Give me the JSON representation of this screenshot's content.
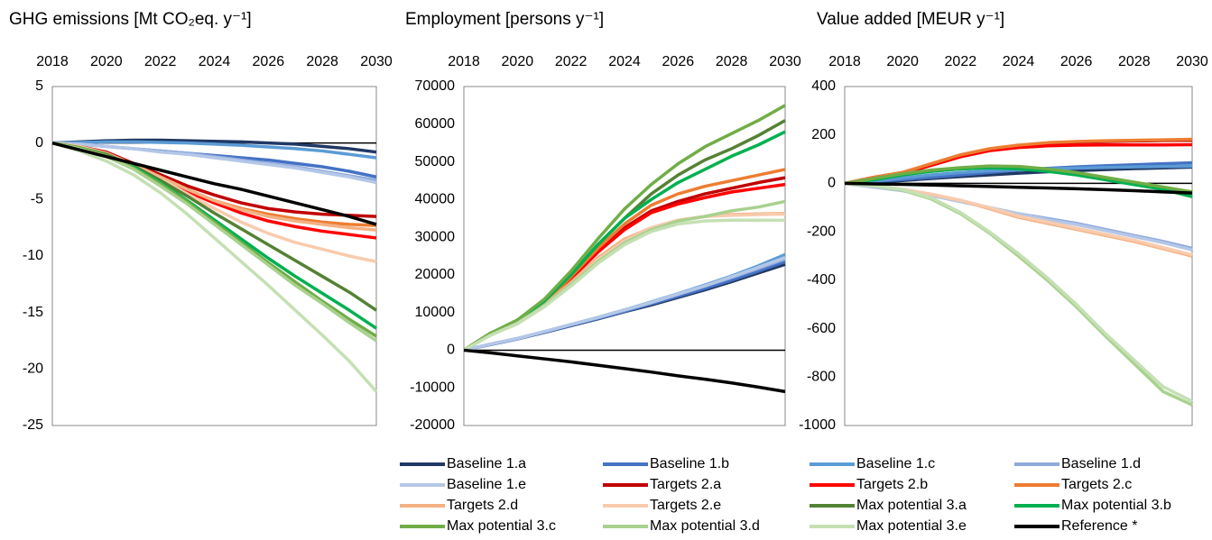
{
  "chart_data": [
    {
      "type": "line",
      "title": "GHG emissions [Mt CO₂eq. y⁻¹]",
      "x": [
        2018,
        2019,
        2020,
        2021,
        2022,
        2023,
        2024,
        2025,
        2026,
        2027,
        2028,
        2029,
        2030
      ],
      "xlim": [
        2018,
        2030
      ],
      "xticks": [
        2018,
        2020,
        2022,
        2024,
        2026,
        2028,
        2030
      ],
      "ylim": [
        -25,
        5
      ],
      "yticks": [
        -25,
        -20,
        -15,
        -10,
        -5,
        0,
        5
      ],
      "series": [
        {
          "values": [
            0,
            0.1,
            0.2,
            0.25,
            0.25,
            0.2,
            0.15,
            0.1,
            0,
            -0.1,
            -0.3,
            -0.5,
            -0.8
          ]
        },
        {
          "values": [
            0,
            -0.1,
            -0.3,
            -0.5,
            -0.7,
            -0.9,
            -1.1,
            -1.3,
            -1.5,
            -1.8,
            -2.1,
            -2.5,
            -3.0
          ]
        },
        {
          "values": [
            0,
            0.05,
            0.1,
            0.1,
            0.05,
            0,
            -0.1,
            -0.2,
            -0.35,
            -0.5,
            -0.7,
            -1.0,
            -1.3
          ]
        },
        {
          "values": [
            0,
            -0.1,
            -0.3,
            -0.5,
            -0.7,
            -0.9,
            -1.2,
            -1.5,
            -1.8,
            -2.1,
            -2.5,
            -2.9,
            -3.3
          ]
        },
        {
          "values": [
            0,
            -0.1,
            -0.3,
            -0.5,
            -0.8,
            -1.0,
            -1.3,
            -1.6,
            -1.9,
            -2.2,
            -2.6,
            -3.0,
            -3.5
          ]
        },
        {
          "values": [
            0,
            -0.3,
            -0.8,
            -1.8,
            -2.8,
            -3.8,
            -4.6,
            -5.3,
            -5.8,
            -6.1,
            -6.3,
            -6.4,
            -6.5
          ]
        },
        {
          "values": [
            0,
            -0.4,
            -1.0,
            -2.0,
            -3.2,
            -4.3,
            -5.3,
            -6.2,
            -6.9,
            -7.4,
            -7.8,
            -8.1,
            -8.4
          ]
        },
        {
          "values": [
            0,
            -0.3,
            -0.9,
            -1.9,
            -3.0,
            -4.1,
            -5.1,
            -5.8,
            -6.3,
            -6.7,
            -7.0,
            -7.2,
            -7.3
          ]
        },
        {
          "values": [
            0,
            -0.3,
            -0.9,
            -1.9,
            -3.0,
            -4.1,
            -5.1,
            -5.9,
            -6.5,
            -6.9,
            -7.2,
            -7.5,
            -7.7
          ]
        },
        {
          "values": [
            0,
            -0.3,
            -1.0,
            -2.0,
            -3.2,
            -4.5,
            -5.8,
            -7.0,
            -8.0,
            -8.8,
            -9.4,
            -10.0,
            -10.5
          ]
        },
        {
          "values": [
            0,
            -0.4,
            -1.0,
            -2.0,
            -3.3,
            -4.7,
            -6.2,
            -7.6,
            -9.0,
            -10.4,
            -11.8,
            -13.2,
            -14.8
          ]
        },
        {
          "values": [
            0,
            -0.4,
            -1.1,
            -2.1,
            -3.5,
            -5.1,
            -6.8,
            -8.5,
            -10.2,
            -11.8,
            -13.3,
            -14.8,
            -16.4
          ]
        },
        {
          "values": [
            0,
            -0.4,
            -1.1,
            -2.2,
            -3.6,
            -5.2,
            -7.0,
            -8.8,
            -10.6,
            -12.3,
            -14.0,
            -15.6,
            -17.1
          ]
        },
        {
          "values": [
            0,
            -0.5,
            -1.2,
            -2.3,
            -3.8,
            -5.4,
            -7.2,
            -9.0,
            -10.8,
            -12.6,
            -14.2,
            -15.9,
            -17.5
          ]
        },
        {
          "values": [
            0,
            -0.7,
            -1.6,
            -2.8,
            -4.4,
            -6.3,
            -8.4,
            -10.5,
            -12.6,
            -14.8,
            -17.0,
            -19.3,
            -22.0
          ]
        },
        {
          "values": [
            0,
            -0.6,
            -1.2,
            -1.8,
            -2.4,
            -3.0,
            -3.6,
            -4.1,
            -4.7,
            -5.3,
            -5.9,
            -6.5,
            -7.2
          ]
        }
      ]
    },
    {
      "type": "line",
      "title": "Employment [persons y⁻¹]",
      "x": [
        2018,
        2019,
        2020,
        2021,
        2022,
        2023,
        2024,
        2025,
        2026,
        2027,
        2028,
        2029,
        2030
      ],
      "xlim": [
        2018,
        2030
      ],
      "xticks": [
        2018,
        2020,
        2022,
        2024,
        2026,
        2028,
        2030
      ],
      "ylim": [
        -20000,
        70000
      ],
      "yticks": [
        -20000,
        -10000,
        0,
        10000,
        20000,
        30000,
        40000,
        50000,
        60000,
        70000
      ],
      "series": [
        {
          "values": [
            0,
            1500,
            3000,
            4700,
            6500,
            8300,
            10200,
            12000,
            14000,
            16000,
            18200,
            20500,
            22800
          ]
        },
        {
          "values": [
            0,
            1500,
            3000,
            4800,
            6600,
            8400,
            10300,
            12300,
            14300,
            16400,
            18600,
            21000,
            23500
          ]
        },
        {
          "values": [
            0,
            1600,
            3100,
            4900,
            6800,
            8700,
            10700,
            12800,
            15000,
            17300,
            19700,
            22400,
            25400
          ]
        },
        {
          "values": [
            0,
            1600,
            3100,
            4900,
            6800,
            8600,
            10600,
            12600,
            14800,
            17000,
            19300,
            21700,
            24200
          ]
        },
        {
          "values": [
            0,
            1600,
            3100,
            4900,
            6800,
            8700,
            10700,
            12700,
            14900,
            17100,
            19500,
            22000,
            24600
          ]
        },
        {
          "values": [
            0,
            4500,
            7500,
            12500,
            19000,
            26000,
            32500,
            37000,
            39500,
            41500,
            43000,
            44500,
            45800
          ]
        },
        {
          "values": [
            0,
            4500,
            7500,
            12500,
            19000,
            26000,
            32000,
            36500,
            38800,
            40500,
            42000,
            43000,
            44000
          ]
        },
        {
          "values": [
            0,
            4500,
            7500,
            12500,
            19500,
            27000,
            33500,
            38500,
            41500,
            43500,
            45000,
            46500,
            48000
          ]
        },
        {
          "values": [
            0,
            4300,
            7300,
            12000,
            18000,
            24500,
            29500,
            32500,
            34500,
            35500,
            36000,
            36200,
            36300
          ]
        },
        {
          "values": [
            0,
            4200,
            7000,
            11500,
            17500,
            24000,
            29000,
            32500,
            34500,
            35500,
            35800,
            36000,
            36100
          ]
        },
        {
          "values": [
            0,
            4500,
            8000,
            13000,
            20000,
            28000,
            35000,
            41500,
            46500,
            50500,
            53500,
            57000,
            61000
          ]
        },
        {
          "values": [
            0,
            4500,
            8000,
            13000,
            20000,
            28000,
            35000,
            40000,
            44500,
            48000,
            51500,
            54500,
            58000
          ]
        },
        {
          "values": [
            0,
            4500,
            8000,
            13500,
            21000,
            29500,
            37500,
            44000,
            49500,
            54000,
            57500,
            61000,
            65000
          ]
        },
        {
          "values": [
            0,
            4000,
            7200,
            11800,
            17500,
            23500,
            28500,
            32000,
            34300,
            35500,
            37000,
            38000,
            39500
          ]
        },
        {
          "values": [
            0,
            4000,
            7000,
            11500,
            17000,
            23000,
            28000,
            31500,
            33500,
            34300,
            34500,
            34500,
            34500
          ]
        },
        {
          "values": [
            0,
            -700,
            -1500,
            -2300,
            -3100,
            -4000,
            -4900,
            -5800,
            -6800,
            -7700,
            -8700,
            -9800,
            -11000
          ]
        }
      ]
    },
    {
      "type": "line",
      "title": "Value added [MEUR y⁻¹]",
      "x": [
        2018,
        2019,
        2020,
        2021,
        2022,
        2023,
        2024,
        2025,
        2026,
        2027,
        2028,
        2029,
        2030
      ],
      "xlim": [
        2018,
        2030
      ],
      "xticks": [
        2018,
        2020,
        2022,
        2024,
        2026,
        2028,
        2030
      ],
      "ylim": [
        -1000,
        400
      ],
      "yticks": [
        -1000,
        -800,
        -600,
        -400,
        -200,
        0,
        200,
        400
      ],
      "series": [
        {
          "values": [
            0,
            5,
            12,
            20,
            28,
            35,
            42,
            48,
            53,
            57,
            61,
            64,
            67
          ]
        },
        {
          "values": [
            0,
            8,
            16,
            25,
            35,
            45,
            55,
            62,
            68,
            73,
            77,
            81,
            85
          ]
        },
        {
          "values": [
            0,
            10,
            22,
            35,
            45,
            52,
            57,
            60,
            63,
            66,
            68,
            70,
            71
          ]
        },
        {
          "values": [
            0,
            -15,
            -30,
            -50,
            -75,
            -100,
            -125,
            -145,
            -165,
            -190,
            -215,
            -240,
            -268
          ]
        },
        {
          "values": [
            0,
            -15,
            -30,
            -50,
            -75,
            -100,
            -125,
            -150,
            -170,
            -195,
            -220,
            -245,
            -275
          ]
        },
        {
          "values": [
            0,
            25,
            45,
            80,
            115,
            140,
            155,
            165,
            170,
            173,
            175,
            177,
            178
          ]
        },
        {
          "values": [
            0,
            20,
            40,
            75,
            110,
            135,
            148,
            155,
            158,
            159,
            159,
            159,
            160
          ]
        },
        {
          "values": [
            0,
            25,
            45,
            82,
            118,
            143,
            158,
            168,
            173,
            176,
            178,
            180,
            182
          ]
        },
        {
          "values": [
            0,
            -10,
            -25,
            -45,
            -70,
            -105,
            -140,
            -165,
            -190,
            -215,
            -240,
            -270,
            -300
          ]
        },
        {
          "values": [
            0,
            -10,
            -25,
            -45,
            -70,
            -100,
            -135,
            -160,
            -185,
            -210,
            -235,
            -265,
            -295
          ]
        },
        {
          "values": [
            0,
            15,
            35,
            50,
            60,
            65,
            62,
            55,
            40,
            20,
            0,
            -20,
            -40
          ]
        },
        {
          "values": [
            0,
            15,
            35,
            50,
            60,
            65,
            60,
            50,
            35,
            15,
            -5,
            -25,
            -55
          ]
        },
        {
          "values": [
            0,
            20,
            40,
            55,
            65,
            72,
            70,
            60,
            45,
            25,
            5,
            -15,
            -35
          ]
        },
        {
          "values": [
            0,
            -10,
            -28,
            -65,
            -125,
            -205,
            -300,
            -400,
            -510,
            -630,
            -745,
            -860,
            -915
          ]
        },
        {
          "values": [
            0,
            -10,
            -25,
            -60,
            -120,
            -200,
            -290,
            -390,
            -500,
            -620,
            -730,
            -840,
            -900
          ]
        },
        {
          "values": [
            0,
            -2,
            -4,
            -7,
            -10,
            -13,
            -16,
            -19,
            -22,
            -26,
            -30,
            -35,
            -40
          ]
        }
      ]
    }
  ],
  "legend": [
    {
      "name": "Baseline 1.a",
      "color": "#203864"
    },
    {
      "name": "Baseline 1.b",
      "color": "#4472c4"
    },
    {
      "name": "Baseline 1.c",
      "color": "#5b9bd5"
    },
    {
      "name": "Baseline 1.d",
      "color": "#8faadc"
    },
    {
      "name": "Baseline 1.e",
      "color": "#b4c7e7"
    },
    {
      "name": "Targets 2.a",
      "color": "#c00000"
    },
    {
      "name": "Targets 2.b",
      "color": "#ff0000"
    },
    {
      "name": "Targets 2.c",
      "color": "#ed7d31"
    },
    {
      "name": "Targets 2.d",
      "color": "#f4b183"
    },
    {
      "name": "Targets 2.e",
      "color": "#f8cbad"
    },
    {
      "name": "Max potential 3.a",
      "color": "#548235"
    },
    {
      "name": "Max potential 3.b",
      "color": "#00b050"
    },
    {
      "name": "Max potential 3.c",
      "color": "#70ad47"
    },
    {
      "name": "Max potential 3.d",
      "color": "#a9d18e"
    },
    {
      "name": "Max potential 3.e",
      "color": "#c5e0b4"
    },
    {
      "name": "Reference *",
      "color": "#000000"
    }
  ]
}
